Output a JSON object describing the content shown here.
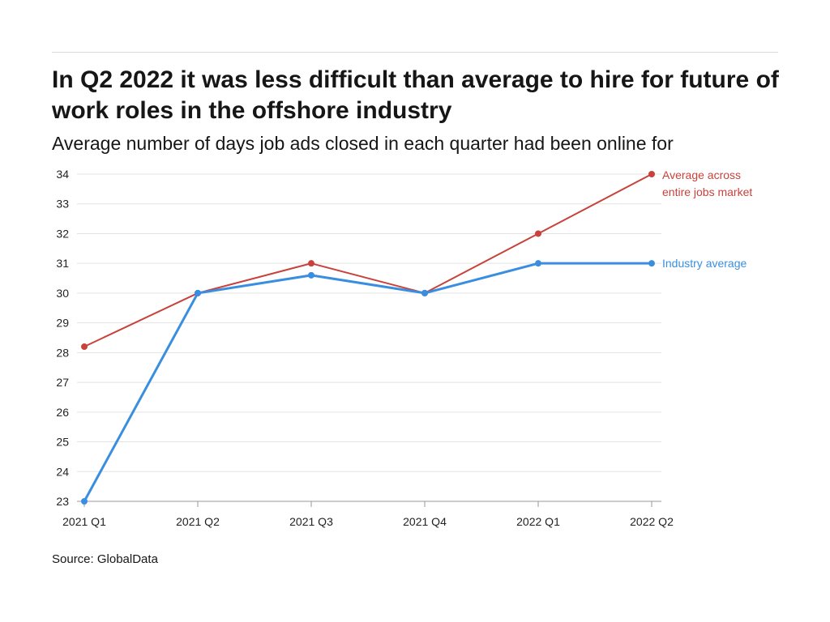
{
  "title": "In Q2 2022 it was less difficult than average to hire for future of work roles in the offshore industry",
  "subtitle": "Average number of days job ads closed in each quarter had been online for",
  "source": "Source: GlobalData",
  "chart_data": {
    "type": "line",
    "categories": [
      "2021 Q1",
      "2021 Q2",
      "2021 Q3",
      "2021 Q4",
      "2022 Q1",
      "2022 Q2"
    ],
    "ylim": [
      23,
      34
    ],
    "yticks": [
      23,
      24,
      25,
      26,
      27,
      28,
      29,
      30,
      31,
      32,
      33,
      34
    ],
    "grid": true,
    "legend": "inline-right",
    "series": [
      {
        "name": "Average across entire jobs market",
        "label_lines": [
          "Average across",
          "entire jobs market"
        ],
        "color": "#c8423b",
        "values": [
          28.2,
          30,
          31,
          30,
          32,
          34
        ]
      },
      {
        "name": "Industry average",
        "label_lines": [
          "Industry average"
        ],
        "color": "#3a8ee0",
        "values": [
          23,
          30,
          30.6,
          30,
          31,
          31
        ]
      }
    ]
  }
}
